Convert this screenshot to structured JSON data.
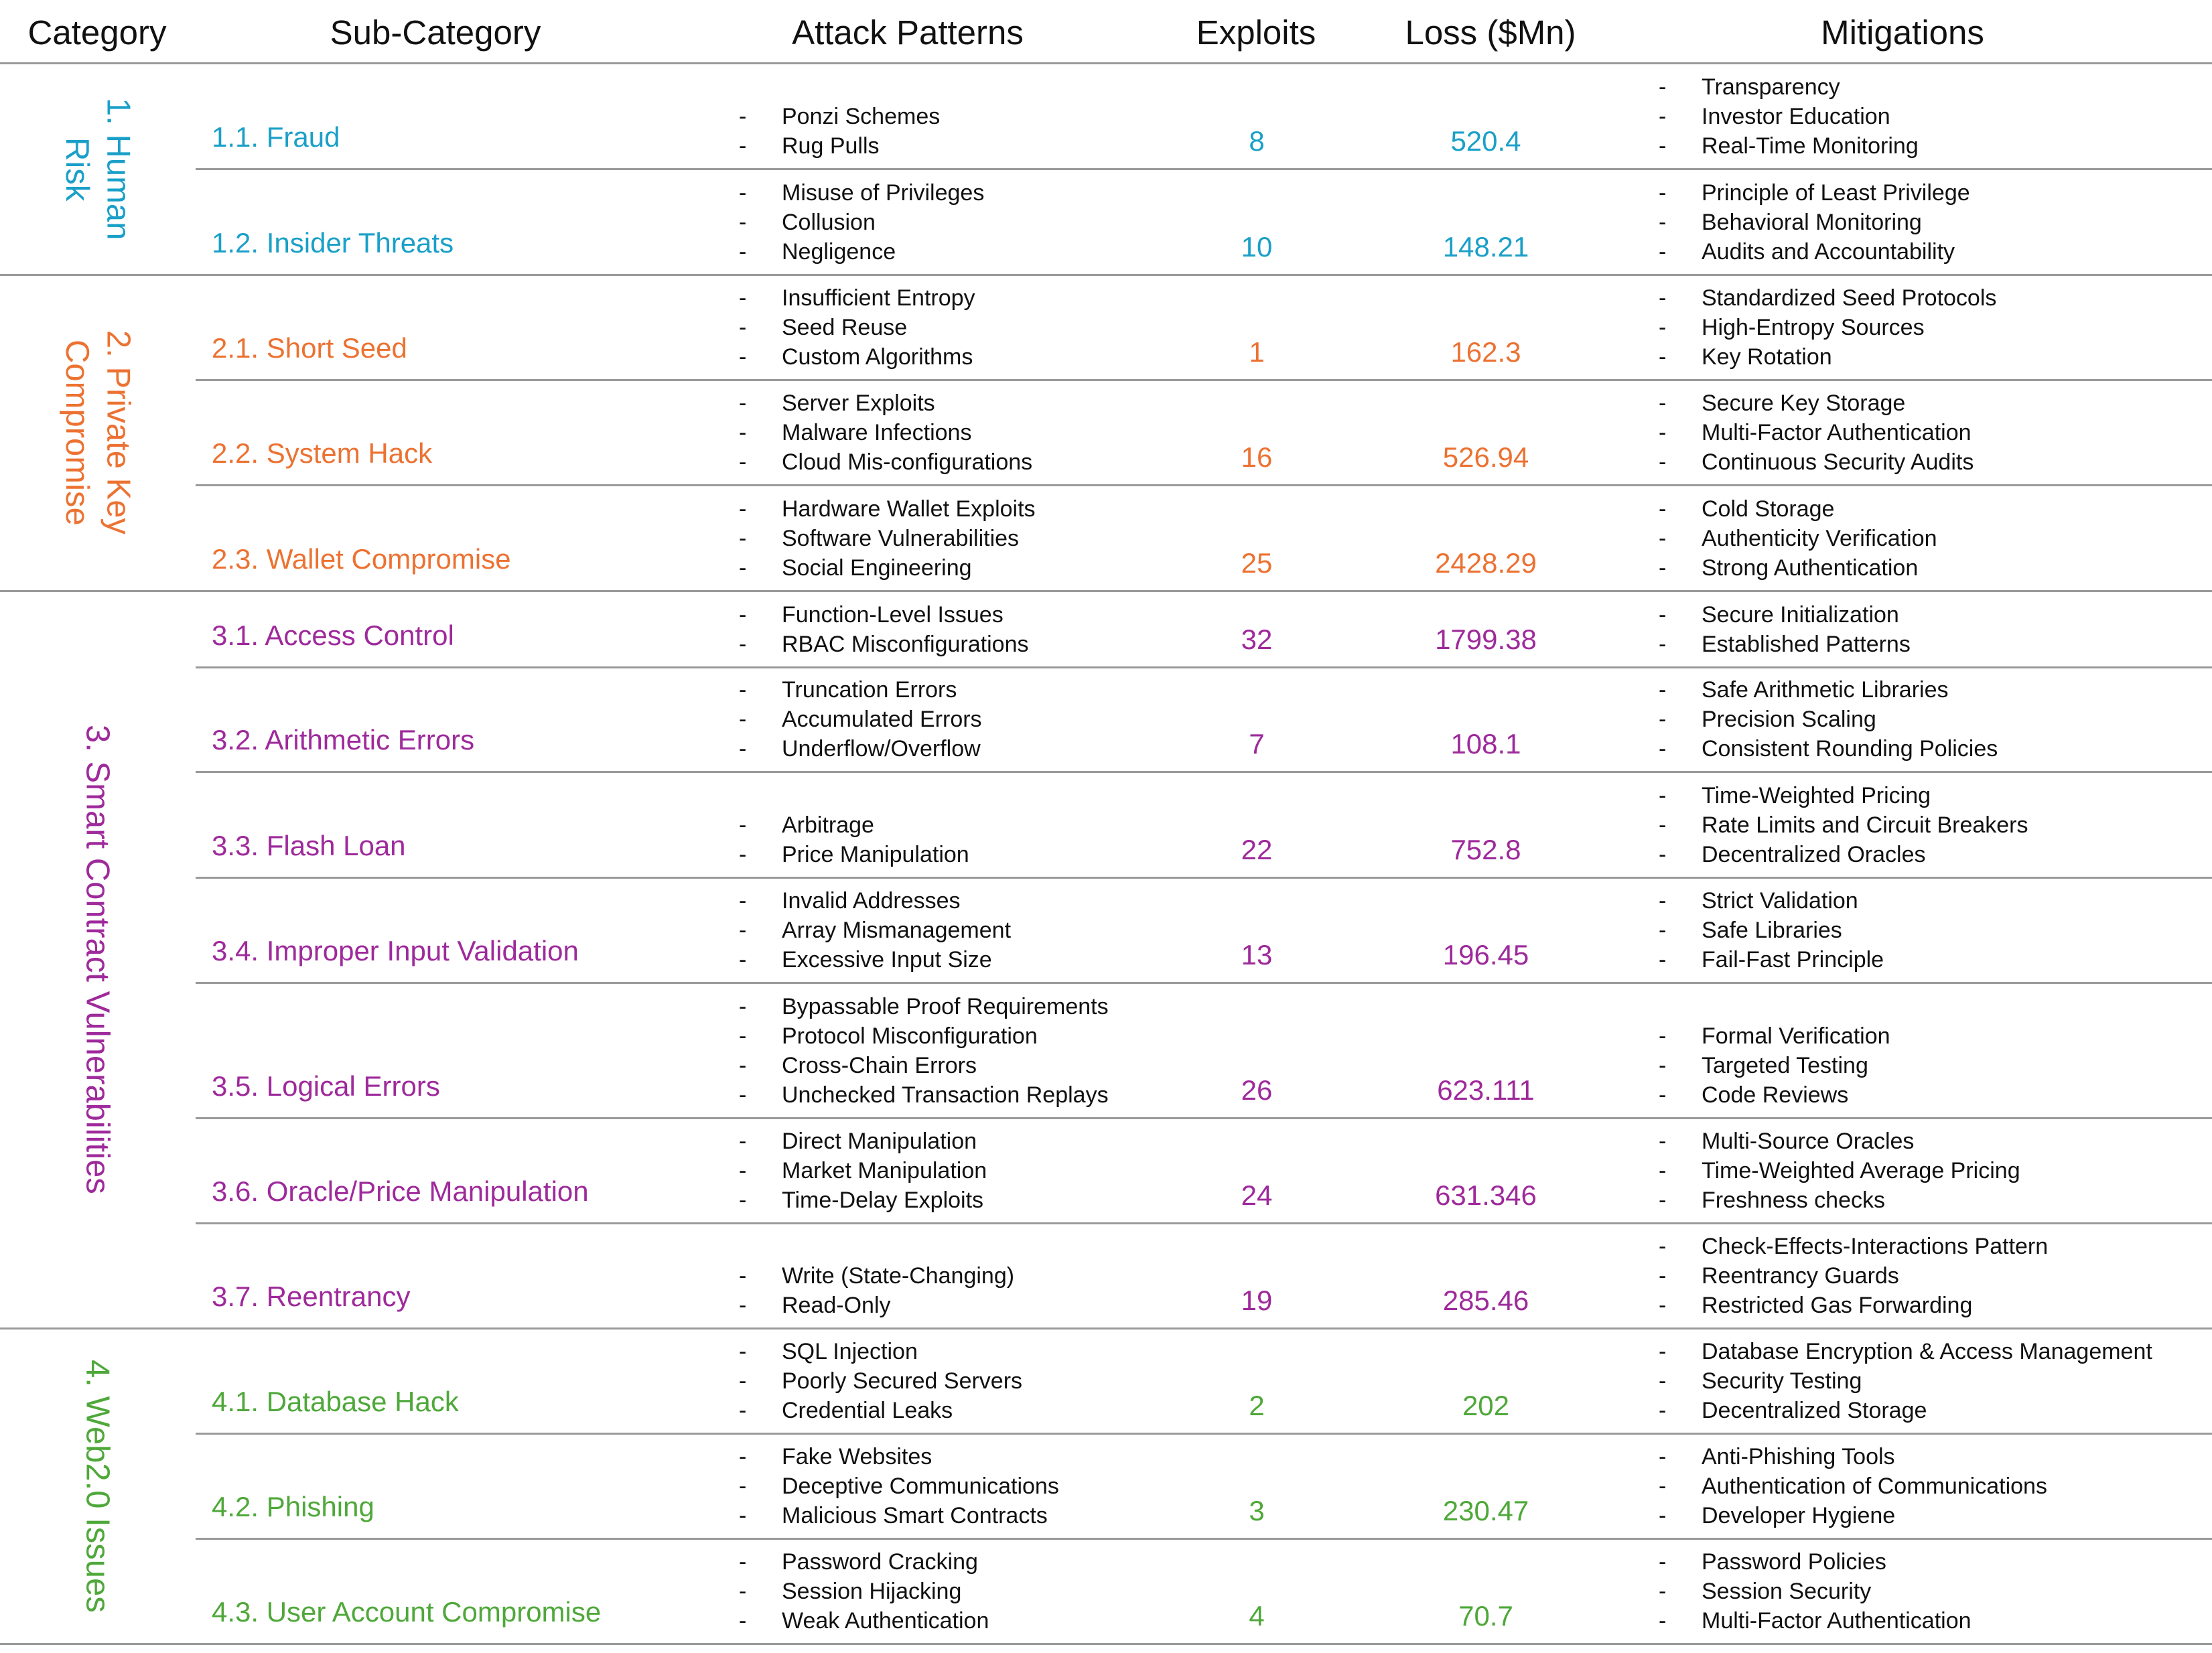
{
  "headers": {
    "category": "Category",
    "subcategory": "Sub-Category",
    "attack_patterns": "Attack Patterns",
    "exploits": "Exploits",
    "loss": "Loss ($Mn)",
    "mitigations": "Mitigations"
  },
  "categories": [
    {
      "label": "1. Human\nRisk",
      "color": "#1aa0c8",
      "rows": [
        {
          "sub": "1.1. Fraud",
          "exploits": "8",
          "loss": "520.4",
          "attacks": [
            "Ponzi Schemes",
            "Rug Pulls"
          ],
          "mitigations": [
            "Transparency",
            "Investor Education",
            "Real-Time Monitoring"
          ]
        },
        {
          "sub": "1.2. Insider Threats",
          "exploits": "10",
          "loss": "148.21",
          "attacks": [
            "Misuse of Privileges",
            "Collusion",
            "Negligence"
          ],
          "mitigations": [
            "Principle of Least Privilege",
            "Behavioral Monitoring",
            "Audits and Accountability"
          ]
        }
      ]
    },
    {
      "label": "2. Private Key\nCompromise",
      "color": "#ec7232",
      "rows": [
        {
          "sub": "2.1. Short Seed",
          "exploits": "1",
          "loss": "162.3",
          "attacks": [
            "Insufficient Entropy",
            "Seed Reuse",
            "Custom Algorithms"
          ],
          "mitigations": [
            "Standardized Seed Protocols",
            "High-Entropy Sources",
            "Key Rotation"
          ]
        },
        {
          "sub": "2.2. System Hack",
          "exploits": "16",
          "loss": "526.94",
          "attacks": [
            "Server Exploits",
            "Malware Infections",
            "Cloud Mis-configurations"
          ],
          "mitigations": [
            "Secure Key Storage",
            "Multi-Factor Authentication",
            "Continuous Security Audits"
          ]
        },
        {
          "sub": "2.3. Wallet Compromise",
          "exploits": "25",
          "loss": "2428.29",
          "attacks": [
            "Hardware Wallet Exploits",
            "Software Vulnerabilities",
            "Social Engineering"
          ],
          "mitigations": [
            "Cold Storage",
            "Authenticity Verification",
            "Strong Authentication"
          ]
        }
      ]
    },
    {
      "label": "3. Smart Contract Vulnerabilities",
      "color": "#9e2a9b",
      "rows": [
        {
          "sub": "3.1. Access Control",
          "exploits": "32",
          "loss": "1799.38",
          "attacks": [
            "Function-Level Issues",
            "RBAC Misconfigurations"
          ],
          "mitigations": [
            "Secure Initialization",
            "Established Patterns"
          ]
        },
        {
          "sub": "3.2. Arithmetic Errors",
          "exploits": "7",
          "loss": "108.1",
          "attacks": [
            "Truncation Errors",
            "Accumulated Errors",
            "Underflow/Overflow"
          ],
          "mitigations": [
            "Safe Arithmetic Libraries",
            "Precision Scaling",
            "Consistent Rounding Policies"
          ]
        },
        {
          "sub": "3.3. Flash Loan",
          "exploits": "22",
          "loss": "752.8",
          "attacks": [
            "Arbitrage",
            "Price Manipulation"
          ],
          "mitigations": [
            "Time-Weighted Pricing",
            "Rate Limits and Circuit Breakers",
            "Decentralized Oracles"
          ]
        },
        {
          "sub": "3.4. Improper Input Validation",
          "exploits": "13",
          "loss": "196.45",
          "attacks": [
            "Invalid Addresses",
            "Array Mismanagement",
            "Excessive Input Size"
          ],
          "mitigations": [
            "Strict Validation",
            "Safe Libraries",
            "Fail-Fast Principle"
          ]
        },
        {
          "sub": "3.5. Logical Errors",
          "exploits": "26",
          "loss": "623.111",
          "attacks": [
            "Bypassable Proof Requirements",
            "Protocol Misconfiguration",
            "Cross-Chain Errors",
            "Unchecked Transaction Replays"
          ],
          "mitigations": [
            "Formal Verification",
            "Targeted Testing",
            "Code Reviews"
          ]
        },
        {
          "sub": "3.6. Oracle/Price Manipulation",
          "exploits": "24",
          "loss": "631.346",
          "attacks": [
            "Direct Manipulation",
            "Market Manipulation",
            "Time-Delay Exploits"
          ],
          "mitigations": [
            "Multi-Source Oracles",
            "Time-Weighted Average Pricing",
            "Freshness checks"
          ]
        },
        {
          "sub": "3.7. Reentrancy",
          "exploits": "19",
          "loss": "285.46",
          "attacks": [
            "Write (State-Changing)",
            "Read-Only"
          ],
          "mitigations": [
            "Check-Effects-Interactions Pattern",
            "Reentrancy Guards",
            "Restricted Gas Forwarding"
          ]
        }
      ]
    },
    {
      "label": "4. Web2.0 Issues",
      "color": "#4fa83a",
      "rows": [
        {
          "sub": "4.1. Database Hack",
          "exploits": "2",
          "loss": "202",
          "attacks": [
            "SQL Injection",
            "Poorly Secured Servers",
            "Credential Leaks"
          ],
          "mitigations": [
            "Database Encryption  & Access Management",
            "Security Testing",
            "Decentralized Storage"
          ]
        },
        {
          "sub": "4.2. Phishing",
          "exploits": "3",
          "loss": "230.47",
          "attacks": [
            "Fake Websites",
            "Deceptive Communications",
            "Malicious Smart Contracts"
          ],
          "mitigations": [
            "Anti-Phishing Tools",
            "Authentication of Communications",
            "Developer Hygiene"
          ]
        },
        {
          "sub": "4.3. User Account Compromise",
          "exploits": "4",
          "loss": "70.7",
          "attacks": [
            "Password Cracking",
            "Session Hijacking",
            "Weak Authentication"
          ],
          "mitigations": [
            "Password Policies",
            "Session Security",
            "Multi-Factor Authentication"
          ]
        }
      ]
    }
  ]
}
